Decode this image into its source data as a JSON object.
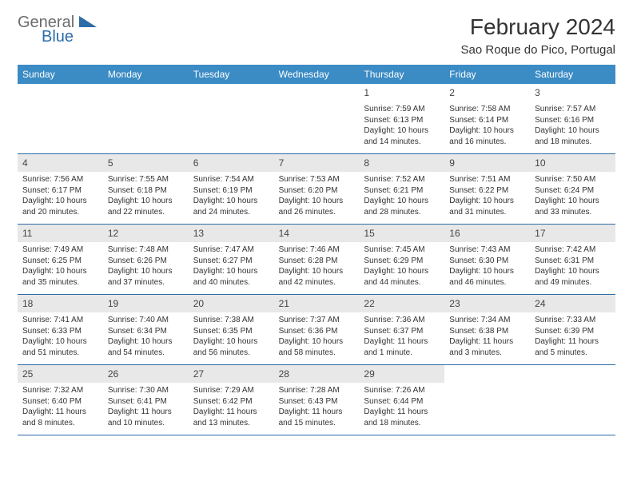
{
  "logo": {
    "text1": "General",
    "text2": "Blue"
  },
  "title": "February 2024",
  "location": "Sao Roque do Pico, Portugal",
  "day_headers": [
    "Sunday",
    "Monday",
    "Tuesday",
    "Wednesday",
    "Thursday",
    "Friday",
    "Saturday"
  ],
  "colors": {
    "header_bg": "#3b8bc4",
    "header_text": "#ffffff",
    "border": "#2c6ca8",
    "daynum_bg": "#e8e8e8",
    "text": "#333333",
    "logo_gray": "#6b6b6b",
    "logo_blue": "#2c6ca8"
  },
  "weeks": [
    [
      {
        "day": "",
        "sunrise": "",
        "sunset": "",
        "daylight1": "",
        "daylight2": ""
      },
      {
        "day": "",
        "sunrise": "",
        "sunset": "",
        "daylight1": "",
        "daylight2": ""
      },
      {
        "day": "",
        "sunrise": "",
        "sunset": "",
        "daylight1": "",
        "daylight2": ""
      },
      {
        "day": "",
        "sunrise": "",
        "sunset": "",
        "daylight1": "",
        "daylight2": ""
      },
      {
        "day": "1",
        "sunrise": "Sunrise: 7:59 AM",
        "sunset": "Sunset: 6:13 PM",
        "daylight1": "Daylight: 10 hours",
        "daylight2": "and 14 minutes."
      },
      {
        "day": "2",
        "sunrise": "Sunrise: 7:58 AM",
        "sunset": "Sunset: 6:14 PM",
        "daylight1": "Daylight: 10 hours",
        "daylight2": "and 16 minutes."
      },
      {
        "day": "3",
        "sunrise": "Sunrise: 7:57 AM",
        "sunset": "Sunset: 6:16 PM",
        "daylight1": "Daylight: 10 hours",
        "daylight2": "and 18 minutes."
      }
    ],
    [
      {
        "day": "4",
        "sunrise": "Sunrise: 7:56 AM",
        "sunset": "Sunset: 6:17 PM",
        "daylight1": "Daylight: 10 hours",
        "daylight2": "and 20 minutes."
      },
      {
        "day": "5",
        "sunrise": "Sunrise: 7:55 AM",
        "sunset": "Sunset: 6:18 PM",
        "daylight1": "Daylight: 10 hours",
        "daylight2": "and 22 minutes."
      },
      {
        "day": "6",
        "sunrise": "Sunrise: 7:54 AM",
        "sunset": "Sunset: 6:19 PM",
        "daylight1": "Daylight: 10 hours",
        "daylight2": "and 24 minutes."
      },
      {
        "day": "7",
        "sunrise": "Sunrise: 7:53 AM",
        "sunset": "Sunset: 6:20 PM",
        "daylight1": "Daylight: 10 hours",
        "daylight2": "and 26 minutes."
      },
      {
        "day": "8",
        "sunrise": "Sunrise: 7:52 AM",
        "sunset": "Sunset: 6:21 PM",
        "daylight1": "Daylight: 10 hours",
        "daylight2": "and 28 minutes."
      },
      {
        "day": "9",
        "sunrise": "Sunrise: 7:51 AM",
        "sunset": "Sunset: 6:22 PM",
        "daylight1": "Daylight: 10 hours",
        "daylight2": "and 31 minutes."
      },
      {
        "day": "10",
        "sunrise": "Sunrise: 7:50 AM",
        "sunset": "Sunset: 6:24 PM",
        "daylight1": "Daylight: 10 hours",
        "daylight2": "and 33 minutes."
      }
    ],
    [
      {
        "day": "11",
        "sunrise": "Sunrise: 7:49 AM",
        "sunset": "Sunset: 6:25 PM",
        "daylight1": "Daylight: 10 hours",
        "daylight2": "and 35 minutes."
      },
      {
        "day": "12",
        "sunrise": "Sunrise: 7:48 AM",
        "sunset": "Sunset: 6:26 PM",
        "daylight1": "Daylight: 10 hours",
        "daylight2": "and 37 minutes."
      },
      {
        "day": "13",
        "sunrise": "Sunrise: 7:47 AM",
        "sunset": "Sunset: 6:27 PM",
        "daylight1": "Daylight: 10 hours",
        "daylight2": "and 40 minutes."
      },
      {
        "day": "14",
        "sunrise": "Sunrise: 7:46 AM",
        "sunset": "Sunset: 6:28 PM",
        "daylight1": "Daylight: 10 hours",
        "daylight2": "and 42 minutes."
      },
      {
        "day": "15",
        "sunrise": "Sunrise: 7:45 AM",
        "sunset": "Sunset: 6:29 PM",
        "daylight1": "Daylight: 10 hours",
        "daylight2": "and 44 minutes."
      },
      {
        "day": "16",
        "sunrise": "Sunrise: 7:43 AM",
        "sunset": "Sunset: 6:30 PM",
        "daylight1": "Daylight: 10 hours",
        "daylight2": "and 46 minutes."
      },
      {
        "day": "17",
        "sunrise": "Sunrise: 7:42 AM",
        "sunset": "Sunset: 6:31 PM",
        "daylight1": "Daylight: 10 hours",
        "daylight2": "and 49 minutes."
      }
    ],
    [
      {
        "day": "18",
        "sunrise": "Sunrise: 7:41 AM",
        "sunset": "Sunset: 6:33 PM",
        "daylight1": "Daylight: 10 hours",
        "daylight2": "and 51 minutes."
      },
      {
        "day": "19",
        "sunrise": "Sunrise: 7:40 AM",
        "sunset": "Sunset: 6:34 PM",
        "daylight1": "Daylight: 10 hours",
        "daylight2": "and 54 minutes."
      },
      {
        "day": "20",
        "sunrise": "Sunrise: 7:38 AM",
        "sunset": "Sunset: 6:35 PM",
        "daylight1": "Daylight: 10 hours",
        "daylight2": "and 56 minutes."
      },
      {
        "day": "21",
        "sunrise": "Sunrise: 7:37 AM",
        "sunset": "Sunset: 6:36 PM",
        "daylight1": "Daylight: 10 hours",
        "daylight2": "and 58 minutes."
      },
      {
        "day": "22",
        "sunrise": "Sunrise: 7:36 AM",
        "sunset": "Sunset: 6:37 PM",
        "daylight1": "Daylight: 11 hours",
        "daylight2": "and 1 minute."
      },
      {
        "day": "23",
        "sunrise": "Sunrise: 7:34 AM",
        "sunset": "Sunset: 6:38 PM",
        "daylight1": "Daylight: 11 hours",
        "daylight2": "and 3 minutes."
      },
      {
        "day": "24",
        "sunrise": "Sunrise: 7:33 AM",
        "sunset": "Sunset: 6:39 PM",
        "daylight1": "Daylight: 11 hours",
        "daylight2": "and 5 minutes."
      }
    ],
    [
      {
        "day": "25",
        "sunrise": "Sunrise: 7:32 AM",
        "sunset": "Sunset: 6:40 PM",
        "daylight1": "Daylight: 11 hours",
        "daylight2": "and 8 minutes."
      },
      {
        "day": "26",
        "sunrise": "Sunrise: 7:30 AM",
        "sunset": "Sunset: 6:41 PM",
        "daylight1": "Daylight: 11 hours",
        "daylight2": "and 10 minutes."
      },
      {
        "day": "27",
        "sunrise": "Sunrise: 7:29 AM",
        "sunset": "Sunset: 6:42 PM",
        "daylight1": "Daylight: 11 hours",
        "daylight2": "and 13 minutes."
      },
      {
        "day": "28",
        "sunrise": "Sunrise: 7:28 AM",
        "sunset": "Sunset: 6:43 PM",
        "daylight1": "Daylight: 11 hours",
        "daylight2": "and 15 minutes."
      },
      {
        "day": "29",
        "sunrise": "Sunrise: 7:26 AM",
        "sunset": "Sunset: 6:44 PM",
        "daylight1": "Daylight: 11 hours",
        "daylight2": "and 18 minutes."
      },
      {
        "day": "",
        "sunrise": "",
        "sunset": "",
        "daylight1": "",
        "daylight2": ""
      },
      {
        "day": "",
        "sunrise": "",
        "sunset": "",
        "daylight1": "",
        "daylight2": ""
      }
    ]
  ]
}
